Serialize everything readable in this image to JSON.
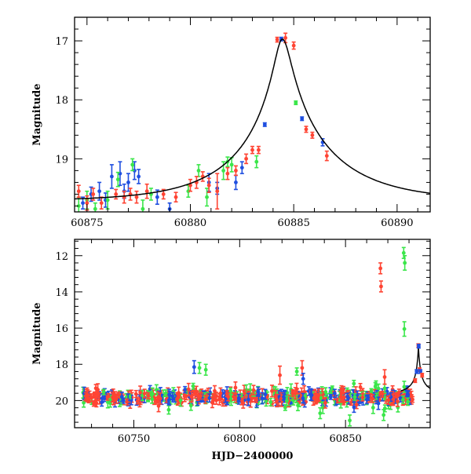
{
  "chart_data": [
    {
      "type": "scatter",
      "panel": "top",
      "xlabel": "",
      "ylabel": "Magnitude",
      "xlim": [
        60874.4,
        60891.6
      ],
      "ylim": [
        19.9,
        16.6
      ],
      "y_inverted": true,
      "xticks": [
        60875,
        60880,
        60885,
        60890
      ],
      "xtick_labels": [
        "60875",
        "60880",
        "60885",
        "60890"
      ],
      "yticks": [
        17,
        18,
        19
      ],
      "ytick_labels": [
        "17",
        "18",
        "19"
      ],
      "grid": false,
      "legend": "none",
      "series": [
        {
          "color": "#1f4fe0",
          "points": [
            [
              60874.8,
              19.75,
              0.1
            ],
            [
              60875.2,
              19.6,
              0.12
            ],
            [
              60875.6,
              19.55,
              0.15
            ],
            [
              60875.9,
              19.7,
              0.12
            ],
            [
              60876.2,
              19.3,
              0.2
            ],
            [
              60876.6,
              19.25,
              0.2
            ],
            [
              60876.8,
              19.55,
              0.12
            ],
            [
              60877.0,
              19.4,
              0.15
            ],
            [
              60877.3,
              19.2,
              0.15
            ],
            [
              60877.5,
              19.3,
              0.12
            ],
            [
              60878.4,
              19.65,
              0.12
            ],
            [
              60879.0,
              19.85,
              0.1
            ],
            [
              60880.9,
              19.4,
              0.15
            ],
            [
              60881.3,
              19.5,
              0.1
            ],
            [
              60882.2,
              19.4,
              0.12
            ],
            [
              60882.5,
              19.15,
              0.1
            ],
            [
              60883.6,
              18.42,
              0.03
            ],
            [
              60884.4,
              16.97,
              0.03
            ],
            [
              60885.4,
              18.32,
              0.03
            ],
            [
              60886.4,
              18.72,
              0.06
            ]
          ]
        },
        {
          "color": "#3be64a",
          "points": [
            [
              60874.6,
              19.8,
              0.15
            ],
            [
              60875.0,
              19.7,
              0.15
            ],
            [
              60875.4,
              19.85,
              0.1
            ],
            [
              60876.0,
              19.7,
              0.15
            ],
            [
              60876.5,
              19.35,
              0.12
            ],
            [
              60877.2,
              19.1,
              0.1
            ],
            [
              60877.7,
              19.85,
              0.15
            ],
            [
              60878.1,
              19.6,
              0.1
            ],
            [
              60879.9,
              19.55,
              0.1
            ],
            [
              60880.4,
              19.2,
              0.1
            ],
            [
              60880.8,
              19.65,
              0.15
            ],
            [
              60881.6,
              19.2,
              0.15
            ],
            [
              60881.8,
              19.05,
              0.08
            ],
            [
              60882.0,
              19.1,
              0.12
            ],
            [
              60883.2,
              19.05,
              0.1
            ],
            [
              60885.1,
              18.05,
              0.03
            ]
          ]
        },
        {
          "color": "#ff4433",
          "points": [
            [
              60874.6,
              19.55,
              0.1
            ],
            [
              60875.0,
              19.75,
              0.12
            ],
            [
              60875.3,
              19.6,
              0.1
            ],
            [
              60875.7,
              19.75,
              0.1
            ],
            [
              60876.4,
              19.6,
              0.08
            ],
            [
              60876.8,
              19.65,
              0.1
            ],
            [
              60877.1,
              19.6,
              0.1
            ],
            [
              60877.4,
              19.65,
              0.1
            ],
            [
              60877.9,
              19.55,
              0.12
            ],
            [
              60878.7,
              19.6,
              0.08
            ],
            [
              60879.3,
              19.65,
              0.08
            ],
            [
              60880.0,
              19.45,
              0.1
            ],
            [
              60880.3,
              19.4,
              0.1
            ],
            [
              60880.6,
              19.3,
              0.08
            ],
            [
              60880.9,
              19.45,
              0.12
            ],
            [
              60881.3,
              19.55,
              0.3
            ],
            [
              60881.8,
              19.25,
              0.1
            ],
            [
              60882.2,
              19.2,
              0.08
            ],
            [
              60882.7,
              19.0,
              0.08
            ],
            [
              60883.0,
              18.85,
              0.06
            ],
            [
              60883.3,
              18.85,
              0.06
            ],
            [
              60884.2,
              16.98,
              0.04
            ],
            [
              60884.6,
              16.95,
              0.08
            ],
            [
              60885.0,
              17.08,
              0.06
            ],
            [
              60885.6,
              18.5,
              0.05
            ],
            [
              60885.9,
              18.6,
              0.05
            ],
            [
              60886.6,
              18.95,
              0.08
            ]
          ]
        }
      ],
      "model_curve": {
        "color": "#000000",
        "peak_x": 60884.45,
        "peak_mag": 16.97,
        "base_mag": 19.72,
        "tE_rise": 1.4,
        "tE_decay": 1.55
      }
    },
    {
      "type": "scatter",
      "panel": "bottom",
      "xlabel": "HJD−2400000",
      "ylabel": "Magnitude",
      "xlim": [
        60722,
        60890
      ],
      "ylim": [
        21.5,
        11.1
      ],
      "y_inverted": true,
      "xticks": [
        60750,
        60800,
        60850
      ],
      "xtick_labels": [
        "60750",
        "60800",
        "60850"
      ],
      "yticks": [
        12,
        14,
        16,
        18,
        20
      ],
      "ytick_labels": [
        "12",
        "14",
        "16",
        "18",
        "20"
      ],
      "grid": false,
      "legend": "none",
      "outliers": [
        {
          "color": "#ff4433",
          "points": [
            [
              60866.5,
              12.7,
              0.3
            ],
            [
              60866.8,
              13.7,
              0.3
            ],
            [
              60829.5,
              18.2,
              0.4
            ],
            [
              60819,
              18.6,
              0.5
            ],
            [
              60868.5,
              18.7,
              0.4
            ]
          ]
        },
        {
          "color": "#3be64a",
          "points": [
            [
              60877.5,
              11.85,
              0.3
            ],
            [
              60878.0,
              12.4,
              0.4
            ],
            [
              60877.8,
              16.05,
              0.4
            ],
            [
              60781,
              18.2,
              0.3
            ],
            [
              60784,
              18.3,
              0.3
            ],
            [
              60827,
              18.4,
              0.2
            ],
            [
              60838,
              20.7,
              0.3
            ],
            [
              60852,
              21.1,
              0.3
            ],
            [
              60868,
              20.8,
              0.3
            ]
          ]
        },
        {
          "color": "#1f4fe0",
          "points": [
            [
              60778.5,
              18.15,
              0.35
            ],
            [
              60830,
              18.8,
              0.3
            ],
            [
              60834,
              19.7,
              0.3
            ]
          ]
        }
      ],
      "baseline": {
        "mag": 19.8,
        "scatter": 0.35,
        "x_range": [
          60726,
          60882
        ]
      },
      "peak_detail": {
        "x_range": [
          60874.5,
          60887
        ],
        "peak_x": 60884.45,
        "peak_mag": 16.97
      }
    }
  ]
}
